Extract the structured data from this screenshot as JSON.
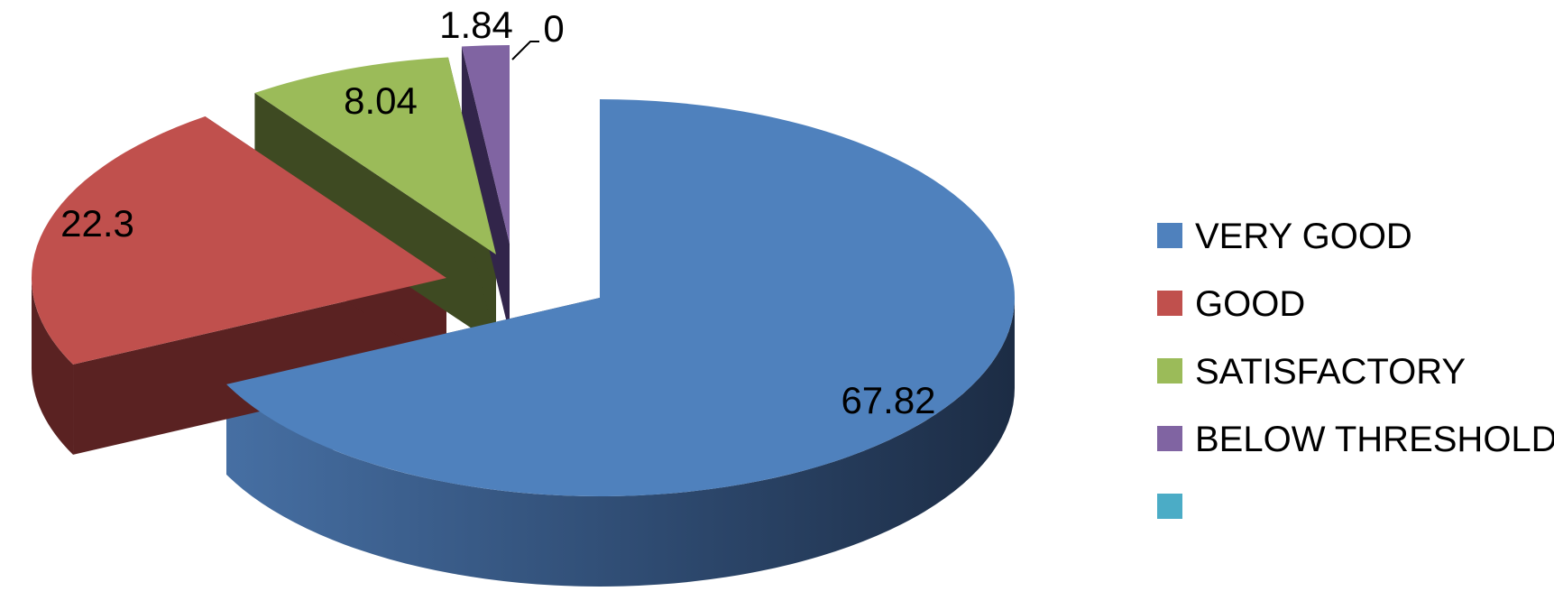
{
  "chart_data": {
    "type": "pie",
    "style": "3d-exploded",
    "title": "",
    "categories": [
      "VERY GOOD",
      "GOOD",
      "SATISFACTORY",
      "BELOW THRESHOLD",
      ""
    ],
    "values": [
      67.82,
      22.3,
      8.04,
      1.84,
      0
    ],
    "data_labels": [
      "67.82",
      "22.3",
      "8.04",
      "1.84",
      "0"
    ],
    "colors": [
      "#4F81BD",
      "#C0504D",
      "#9BBB59",
      "#8064A2",
      "#4BACC6"
    ],
    "legend_placement": "right"
  }
}
